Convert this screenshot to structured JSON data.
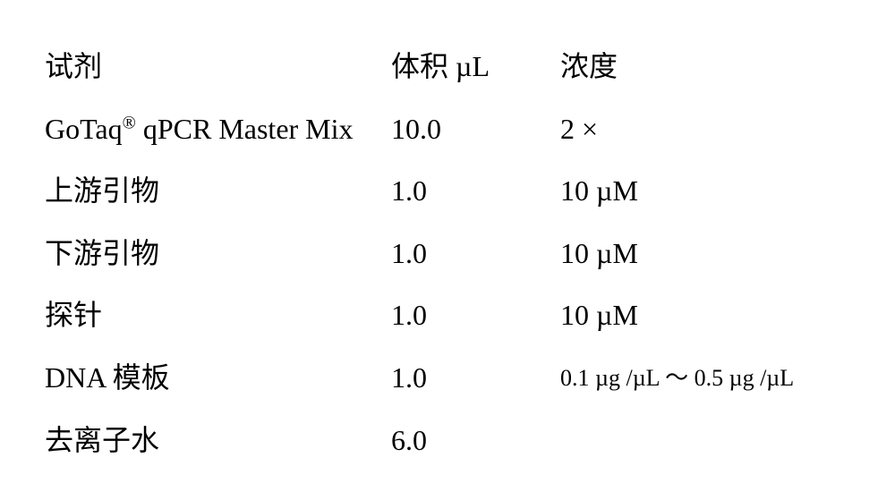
{
  "table": {
    "background_color": "#ffffff",
    "text_color": "#000000",
    "font_family": "Times New Roman, SimSun, serif",
    "header_fontsize": 32,
    "cell_fontsize": 32,
    "small_fontsize": 26,
    "row_padding": 14,
    "columns": [
      {
        "key": "reagent",
        "label": "试剂",
        "width": "43%"
      },
      {
        "key": "volume",
        "label": "体积 µL",
        "width": "21%"
      },
      {
        "key": "concentration",
        "label": "浓度",
        "width": "36%"
      }
    ],
    "rows": [
      {
        "reagent_prefix": "GoTaq",
        "reagent_super": "®",
        "reagent_suffix": " qPCR Master Mix",
        "volume": "10.0",
        "concentration": "2 ×"
      },
      {
        "reagent": "上游引物",
        "volume": "1.0",
        "concentration": "10 µM"
      },
      {
        "reagent": "下游引物",
        "volume": "1.0",
        "concentration": "10 µM"
      },
      {
        "reagent": "探针",
        "volume": "1.0",
        "concentration": "10 µM"
      },
      {
        "reagent": "DNA 模板",
        "volume": "1.0",
        "concentration": "0.1 µg /µL ～ 0.5 µg /µL",
        "concentration_small": true
      },
      {
        "reagent": "去离子水",
        "volume": "6.0",
        "concentration": ""
      }
    ]
  }
}
